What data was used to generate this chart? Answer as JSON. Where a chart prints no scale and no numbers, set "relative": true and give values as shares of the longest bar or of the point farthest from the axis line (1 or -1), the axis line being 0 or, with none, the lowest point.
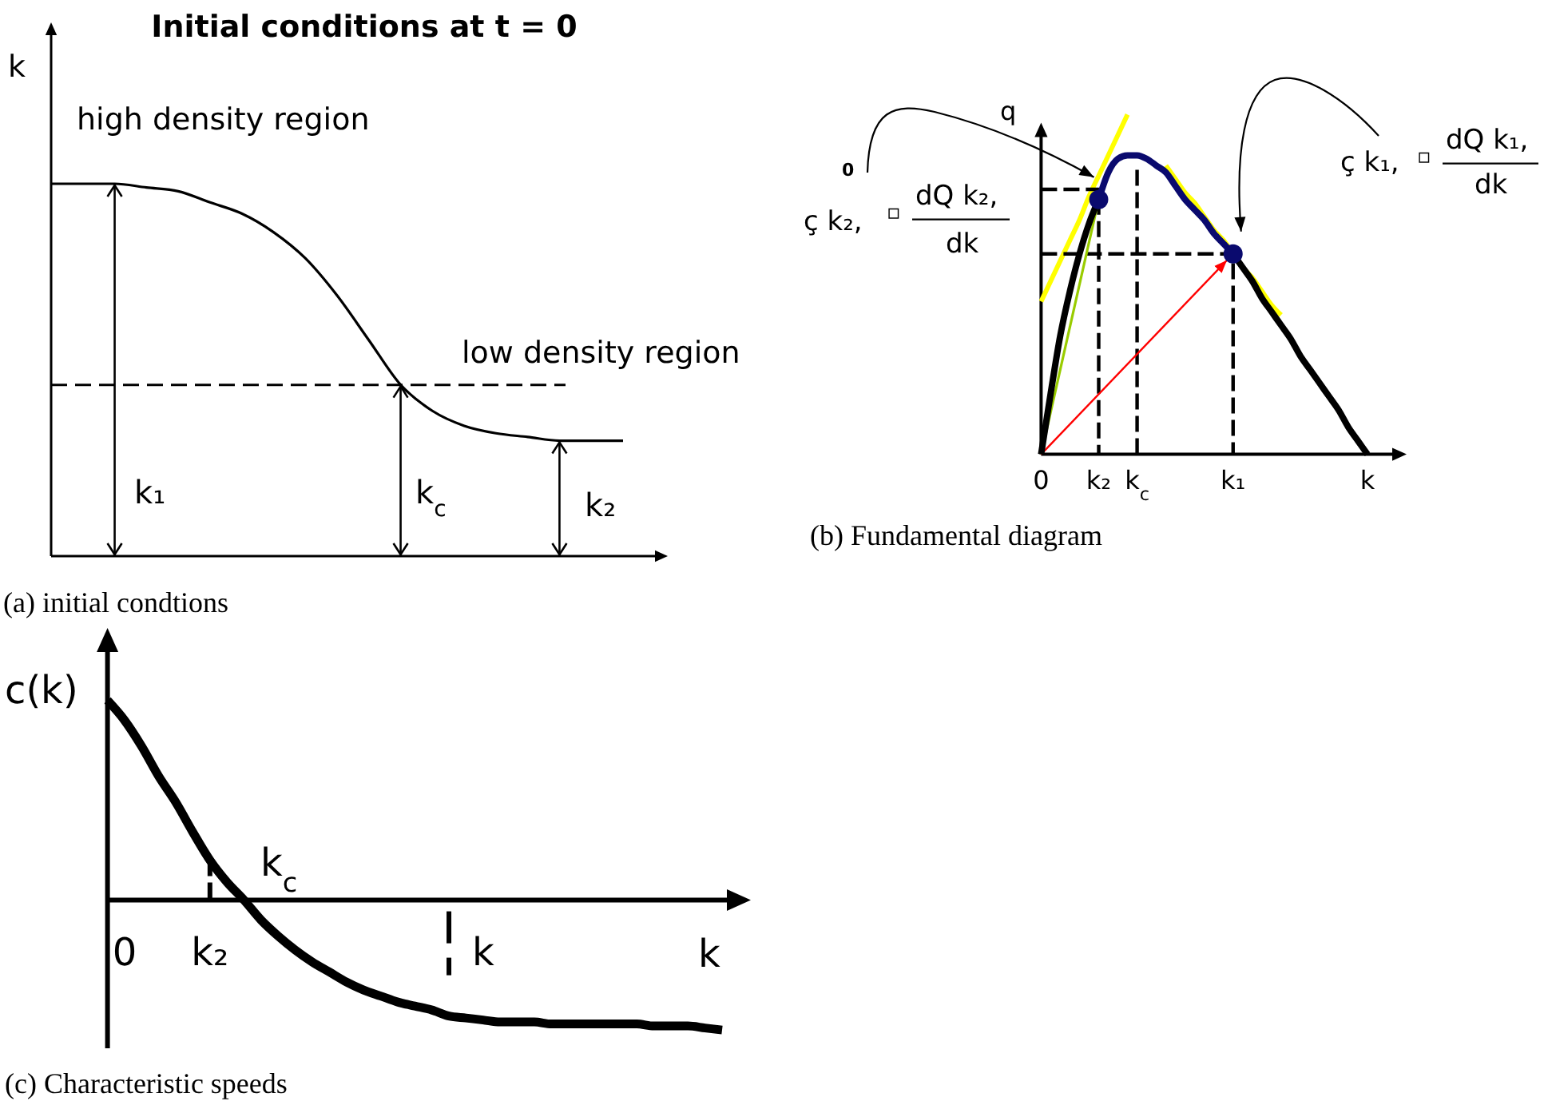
{
  "chart_data": [
    {
      "type": "line",
      "title": "Initial conditions at t = 0",
      "ylabel": "k",
      "relative": true,
      "categories": [
        null,
        null,
        null,
        null,
        null,
        null,
        null,
        null,
        null,
        null,
        null,
        null,
        null,
        null,
        null,
        null,
        null,
        null,
        null
      ],
      "series": [
        {
          "color": "#000000",
          "values": [
            1,
            1,
            1,
            0.99,
            0.98,
            0.95,
            0.92,
            0.87,
            0.8,
            0.7,
            0.58,
            0.46,
            0.39,
            0.35,
            0.33,
            0.32,
            0.31,
            0.31,
            0.31
          ]
        }
      ],
      "ref_lines": [
        {
          "axis": "y",
          "value": 0.46,
          "line_style": "dashed",
          "color": "#000000"
        }
      ],
      "annotations": [
        "high density region",
        "low density region",
        "k₁",
        "k$_{c}$",
        "k₂",
        "(a) initial condtions"
      ]
    },
    {
      "type": "line",
      "ylabel": "q",
      "relative": true,
      "categories": [
        "0",
        null,
        null,
        null,
        null,
        null,
        "k₂",
        null,
        null,
        null,
        "k$_{c}$",
        null,
        null,
        null,
        null,
        null,
        null,
        null,
        null,
        null,
        "k₁",
        null,
        null,
        null,
        null,
        null,
        null,
        null,
        null,
        null,
        null,
        null,
        null,
        null,
        "k"
      ],
      "series": [
        {
          "color": "#ffff00",
          "values": [
            0.45,
            0.51,
            0.57,
            0.63,
            0.69,
            0.76,
            0.82,
            0.88,
            0.94,
            1,
            null,
            null,
            null,
            null,
            null,
            null,
            null,
            null,
            null,
            null,
            null,
            null,
            null,
            null,
            null,
            null,
            null,
            null,
            null,
            null,
            null,
            null,
            null,
            null,
            null
          ]
        },
        {
          "color": "#ffff00",
          "values": [
            null,
            null,
            null,
            null,
            null,
            null,
            null,
            null,
            null,
            null,
            null,
            null,
            null,
            0.85,
            0.81,
            0.77,
            0.74,
            0.7,
            0.66,
            0.63,
            0.59,
            0.55,
            0.52,
            0.48,
            0.44,
            0.41,
            null,
            null,
            null,
            null,
            null,
            null,
            null,
            null,
            null
          ]
        },
        {
          "color": "#000000",
          "line_style": "dashed",
          "x": [
            "0",
            "k₂",
            "k₂"
          ],
          "values": [
            0.78,
            0.78,
            0
          ]
        },
        {
          "color": "#000000",
          "line_style": "dashed",
          "x": [
            "k$_{c}$",
            "k$_{c}$"
          ],
          "values": [
            0,
            0.85
          ]
        },
        {
          "color": "#000000",
          "line_style": "dashed",
          "x": [
            "0",
            "k₁",
            "k₁"
          ],
          "values": [
            0.59,
            0.59,
            0
          ]
        },
        {
          "color": "#99cc00",
          "x": [
            "0",
            "k₂"
          ],
          "values": [
            0,
            0.75
          ]
        },
        {
          "color": "#ff0000",
          "x": [
            "0",
            "k₁"
          ],
          "values": [
            0,
            0.59
          ]
        },
        {
          "color": "#000000",
          "values": [
            0,
            0.18,
            0.35,
            0.48,
            0.59,
            0.68,
            0.75,
            null,
            null,
            null,
            null,
            null,
            null,
            null,
            null,
            null,
            null,
            null,
            null,
            null,
            null,
            null,
            null,
            null,
            null,
            null,
            null,
            null,
            null,
            null,
            null,
            null,
            null,
            null,
            null
          ]
        },
        {
          "color": "#0a0a6e",
          "values": [
            null,
            null,
            null,
            null,
            null,
            null,
            0.75,
            0.83,
            0.87,
            0.88,
            0.88,
            0.87,
            0.85,
            0.83,
            0.79,
            0.75,
            0.72,
            0.69,
            0.65,
            0.62,
            0.59,
            null,
            null,
            null,
            null,
            null,
            null,
            null,
            null,
            null,
            null,
            null,
            null,
            null,
            null
          ]
        },
        {
          "color": "#000000",
          "values": [
            null,
            null,
            null,
            null,
            null,
            null,
            null,
            null,
            null,
            null,
            null,
            null,
            null,
            null,
            null,
            null,
            null,
            null,
            null,
            null,
            0.59,
            0.55,
            0.51,
            0.46,
            0.42,
            0.38,
            0.34,
            0.29,
            0.25,
            0.21,
            0.17,
            0.13,
            0.08,
            0.04,
            0
          ]
        },
        {
          "type": "scatter",
          "marker": "circle",
          "color": "#0a0a6e",
          "values": [
            null,
            null,
            null,
            null,
            null,
            null,
            0.75,
            null,
            null,
            null,
            null,
            null,
            null,
            null,
            null,
            null,
            null,
            null,
            null,
            null,
            0.59,
            null,
            null,
            null,
            null,
            null,
            null,
            null,
            null,
            null,
            null,
            null,
            null,
            null,
            null
          ]
        }
      ],
      "annotations": [
        "0",
        "ç k₂,",
        "▫",
        "dQ k₂,",
        "dk",
        "ç k₁,",
        "▫",
        "dQ k₁,",
        "dk",
        "(b) Fundamental diagram"
      ]
    },
    {
      "type": "line",
      "xlabel": "k",
      "ylabel": "c(k)",
      "relative": true,
      "categories": [
        null,
        "0",
        null,
        null,
        null,
        null,
        "k₂",
        null,
        null,
        null,
        null,
        null,
        null,
        null,
        null,
        null,
        null,
        null,
        null,
        null,
        null,
        null,
        "k",
        null,
        null,
        null,
        null,
        null,
        null,
        null,
        null,
        null,
        null,
        null,
        null,
        null,
        null
      ],
      "series": [
        {
          "color": "#000000",
          "values": [
            1,
            0.9,
            0.77,
            0.62,
            0.49,
            0.34,
            0.2,
            0.09,
            0,
            -0.1,
            -0.18,
            -0.25,
            -0.31,
            -0.36,
            -0.41,
            -0.45,
            -0.48,
            -0.51,
            -0.53,
            -0.55,
            -0.58,
            -0.59,
            -0.6,
            -0.61,
            -0.61,
            -0.61,
            -0.62,
            -0.62,
            -0.62,
            -0.62,
            -0.62,
            -0.62,
            -0.63,
            -0.63,
            -0.63,
            -0.64,
            -0.65
          ]
        },
        {
          "color": "#000000",
          "line_style": "dashed",
          "x": [
            "k₂",
            "k₂"
          ],
          "values": [
            0,
            0.2
          ]
        }
      ],
      "annotations": [
        "k$_{c}$",
        "(c) Characteristic speeds"
      ]
    }
  ]
}
